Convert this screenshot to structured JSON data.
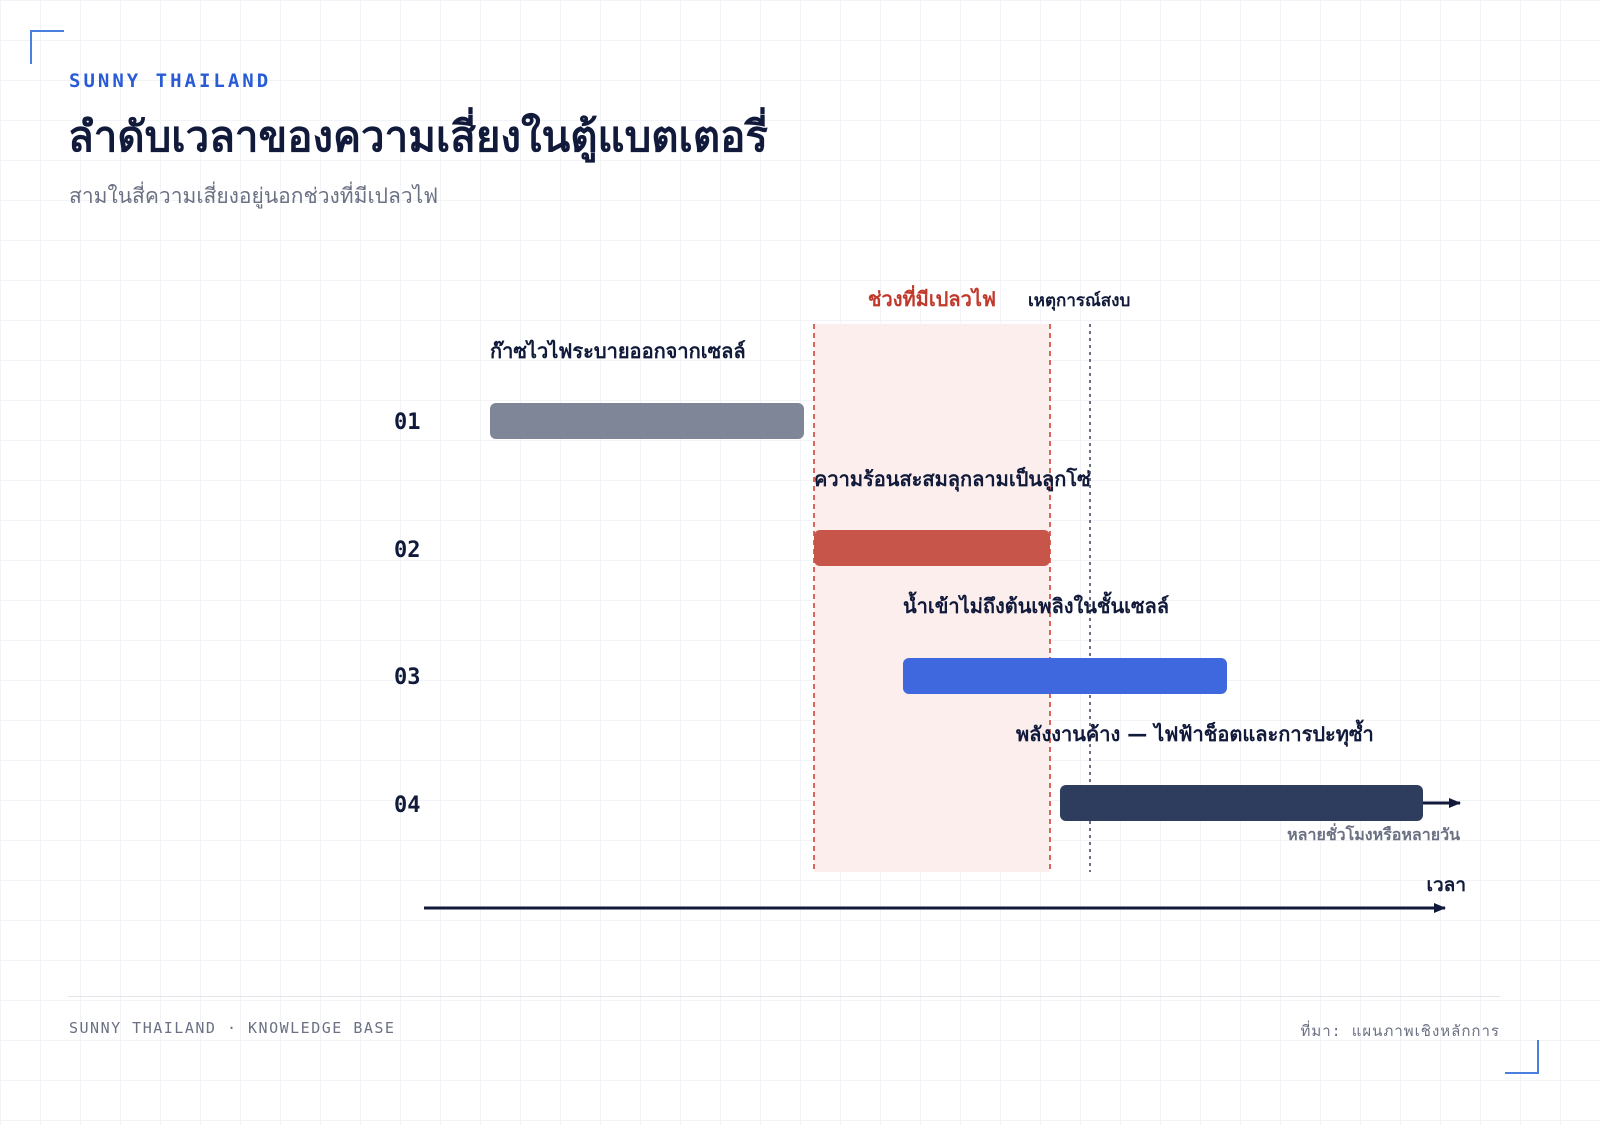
{
  "header": {
    "brand": "SUNNY THAILAND",
    "title": "ลำดับเวลาของความเสี่ยงในตู้แบตเตอรี่",
    "subtitle": "สามในสี่ความเสี่ยงอยู่นอกช่วงที่มีเปลวไฟ"
  },
  "timeline": {
    "flame_zone_label": "ช่วงที่มีเปลวไฟ",
    "calm_event_label": "เหตุการณ์สงบ",
    "axis_label": "เวลา",
    "duration_note": "หลายชั่วโมงหรือหลายวัน",
    "colors": {
      "flame_label": "#c0392b",
      "flame_zone_fill": "#fbeeed",
      "flame_zone_border": "#d9665c",
      "calm_line": "#6b7183",
      "axis": "#111a3a"
    },
    "rows": [
      {
        "number": "01",
        "label": "ก๊าซไวไฟระบายออกจากเซลล์",
        "color": "#7f8698"
      },
      {
        "number": "02",
        "label": "ความร้อนสะสมลุกลามเป็นลูกโซ่",
        "color": "#c8554a"
      },
      {
        "number": "03",
        "label": "น้ำเข้าไม่ถึงต้นเพลิงในชั้นเซลล์",
        "color": "#3f68df"
      },
      {
        "number": "04",
        "label": "พลังงานค้าง — ไฟฟ้าช็อตและการปะทุซ้ำ",
        "color": "#2e3c5e"
      }
    ]
  },
  "footer": {
    "left": "SUNNY THAILAND · KNOWLEDGE BASE",
    "right": "ที่มา: แผนภาพเชิงหลักการ"
  }
}
